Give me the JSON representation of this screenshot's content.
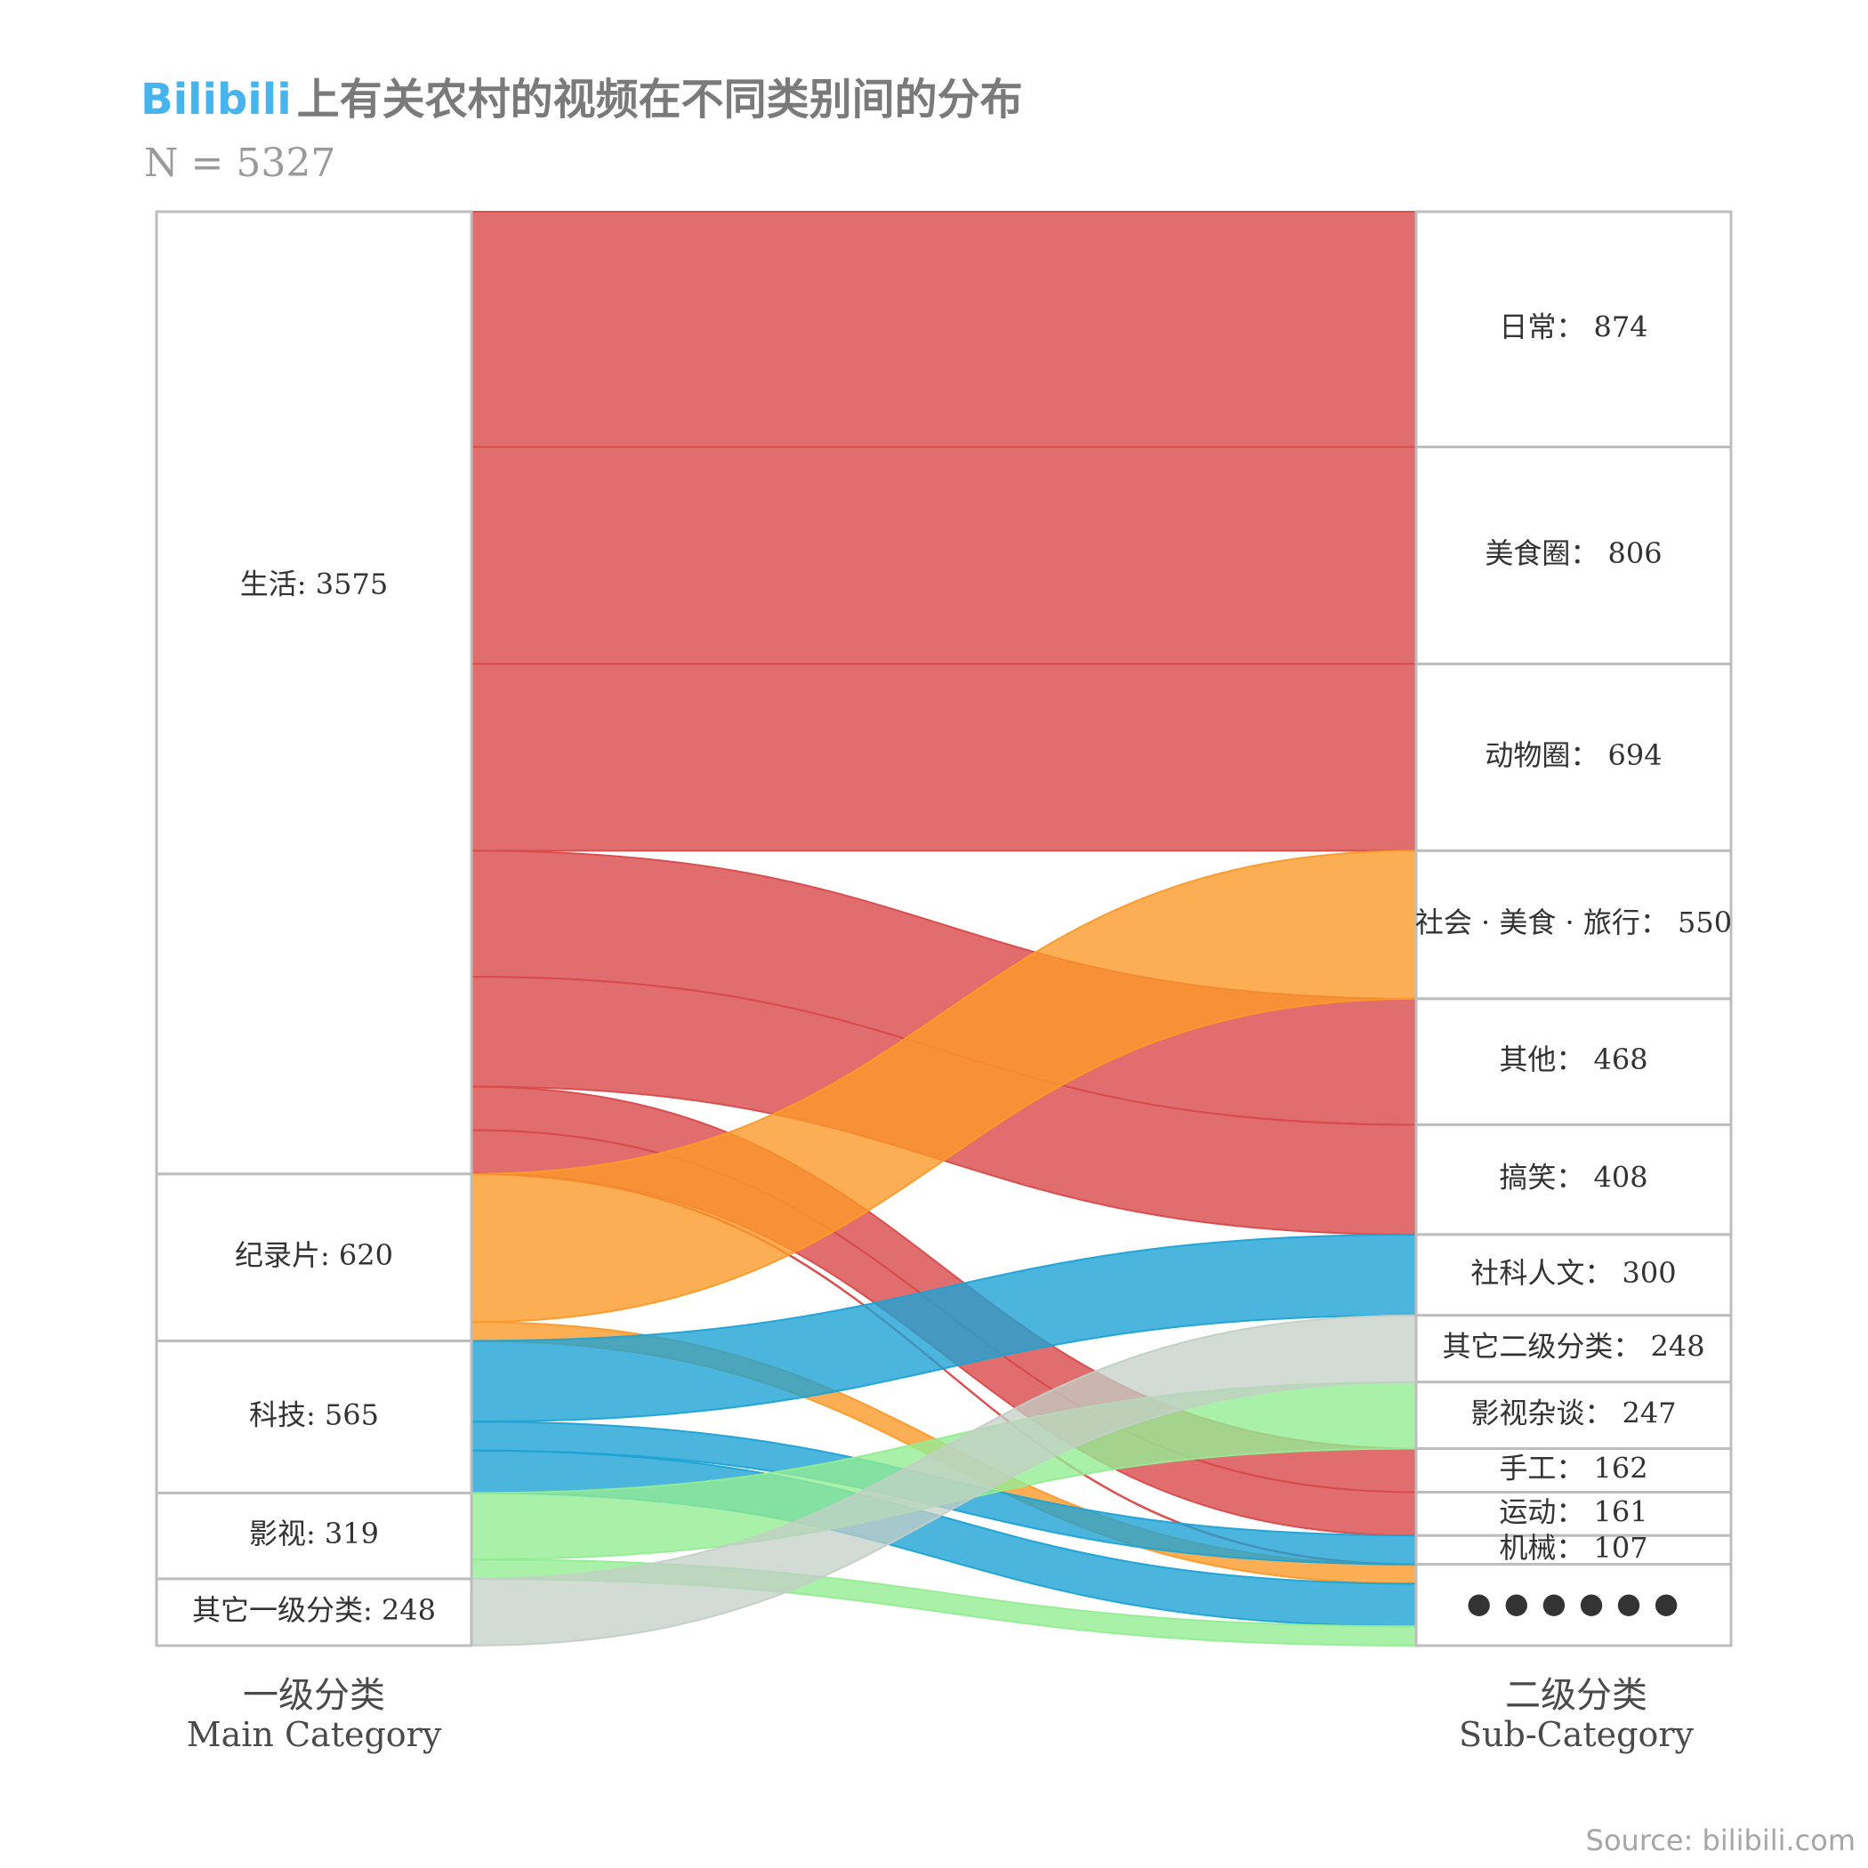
{
  "title": {
    "brand": "Bilibili",
    "text": "上有关农村的视频在不同类别间的分布"
  },
  "subtitle": "N = 5327",
  "left_axis": {
    "cn": "一级分类",
    "en": "Main Category"
  },
  "right_axis": {
    "cn": "二级分类",
    "en": "Sub-Category"
  },
  "source": "Source: bilibili.com",
  "colors": {
    "生活": "#d94a4a",
    "纪录片": "#fb9a29",
    "科技": "#1ea3d4",
    "影视": "#93ec93",
    "其它一级分类": "#c3cfc6",
    "node_border": "#bdbdbd"
  },
  "chart_data": {
    "type": "sankey",
    "total": 5327,
    "left_nodes": [
      {
        "name": "生活",
        "value": 3575,
        "label": "生活: 3575"
      },
      {
        "name": "纪录片",
        "value": 620,
        "label": "纪录片: 620"
      },
      {
        "name": "科技",
        "value": 565,
        "label": "科技: 565"
      },
      {
        "name": "影视",
        "value": 319,
        "label": "影视: 319"
      },
      {
        "name": "其它一级分类",
        "value": 248,
        "label": "其它一级分类: 248"
      }
    ],
    "right_nodes": [
      {
        "name": "日常",
        "value": 874,
        "label": "日常： 874"
      },
      {
        "name": "美食圈",
        "value": 806,
        "label": "美食圈： 806"
      },
      {
        "name": "动物圈",
        "value": 694,
        "label": "动物圈： 694"
      },
      {
        "name": "社会·美食·旅行",
        "value": 550,
        "label": "社会 · 美食 · 旅行： 550"
      },
      {
        "name": "其他",
        "value": 468,
        "label": "其他： 468"
      },
      {
        "name": "搞笑",
        "value": 408,
        "label": "搞笑： 408"
      },
      {
        "name": "社科人文",
        "value": 300,
        "label": "社科人文： 300"
      },
      {
        "name": "其它二级分类",
        "value": 248,
        "label": "其它二级分类： 248"
      },
      {
        "name": "影视杂谈",
        "value": 247,
        "label": "影视杂谈： 247"
      },
      {
        "name": "手工",
        "value": 162,
        "label": "手工： 162"
      },
      {
        "name": "运动",
        "value": 161,
        "label": "运动： 161"
      },
      {
        "name": "机械",
        "value": 107,
        "label": "机械： 107"
      },
      {
        "name": "……",
        "value": 302,
        "label": "● ● ● ● ● ●"
      }
    ],
    "links": [
      {
        "source": "生活",
        "target": "日常",
        "value": 874
      },
      {
        "source": "生活",
        "target": "美食圈",
        "value": 806
      },
      {
        "source": "生活",
        "target": "动物圈",
        "value": 694
      },
      {
        "source": "生活",
        "target": "其他",
        "value": 468
      },
      {
        "source": "生活",
        "target": "搞笑",
        "value": 408
      },
      {
        "source": "生活",
        "target": "手工",
        "value": 162
      },
      {
        "source": "生活",
        "target": "运动",
        "value": 161
      },
      {
        "source": "生活",
        "target": "……",
        "value": 2
      },
      {
        "source": "纪录片",
        "target": "社会·美食·旅行",
        "value": 550
      },
      {
        "source": "纪录片",
        "target": "……",
        "value": 70
      },
      {
        "source": "科技",
        "target": "社科人文",
        "value": 300
      },
      {
        "source": "科技",
        "target": "机械",
        "value": 107
      },
      {
        "source": "科技",
        "target": "……",
        "value": 158
      },
      {
        "source": "影视",
        "target": "影视杂谈",
        "value": 247
      },
      {
        "source": "影视",
        "target": "……",
        "value": 72
      },
      {
        "source": "其它一级分类",
        "target": "其它二级分类",
        "value": 248
      }
    ]
  }
}
